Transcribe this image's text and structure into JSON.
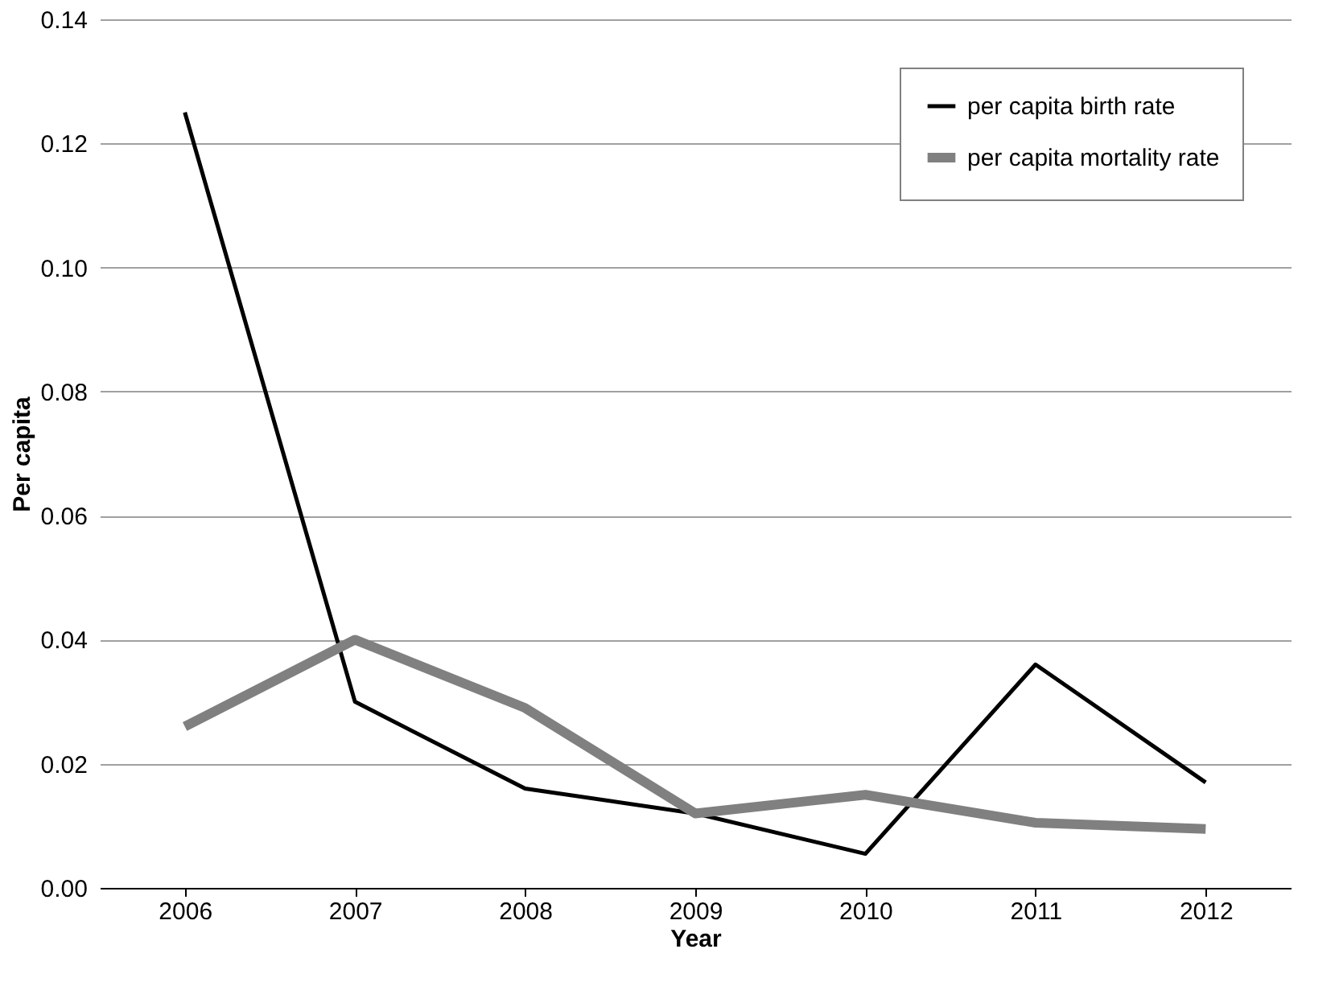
{
  "chart_data": {
    "type": "line",
    "xlabel": "Year",
    "ylabel": "Per capita",
    "categories": [
      "2006",
      "2007",
      "2008",
      "2009",
      "2010",
      "2011",
      "2012"
    ],
    "series": [
      {
        "name": "per capita birth rate",
        "color": "#000000",
        "values": [
          0.125,
          0.03,
          0.016,
          0.012,
          0.0055,
          0.036,
          0.017
        ]
      },
      {
        "name": "per capita mortality rate",
        "color": "#808080",
        "values": [
          0.026,
          0.04,
          0.029,
          0.012,
          0.015,
          0.0105,
          0.0095
        ]
      }
    ],
    "ylim": [
      0,
      0.14
    ],
    "yticks": [
      {
        "value": 0,
        "label": "0.00"
      },
      {
        "value": 0.02,
        "label": "0.02"
      },
      {
        "value": 0.04,
        "label": "0.04"
      },
      {
        "value": 0.06,
        "label": "0.06"
      },
      {
        "value": 0.08,
        "label": "0.08"
      },
      {
        "value": 0.1,
        "label": "0.10"
      },
      {
        "value": 0.12,
        "label": "0.12"
      },
      {
        "value": 0.14,
        "label": "0.14"
      }
    ],
    "grid": "y",
    "legend": "top right",
    "marker": "none"
  }
}
